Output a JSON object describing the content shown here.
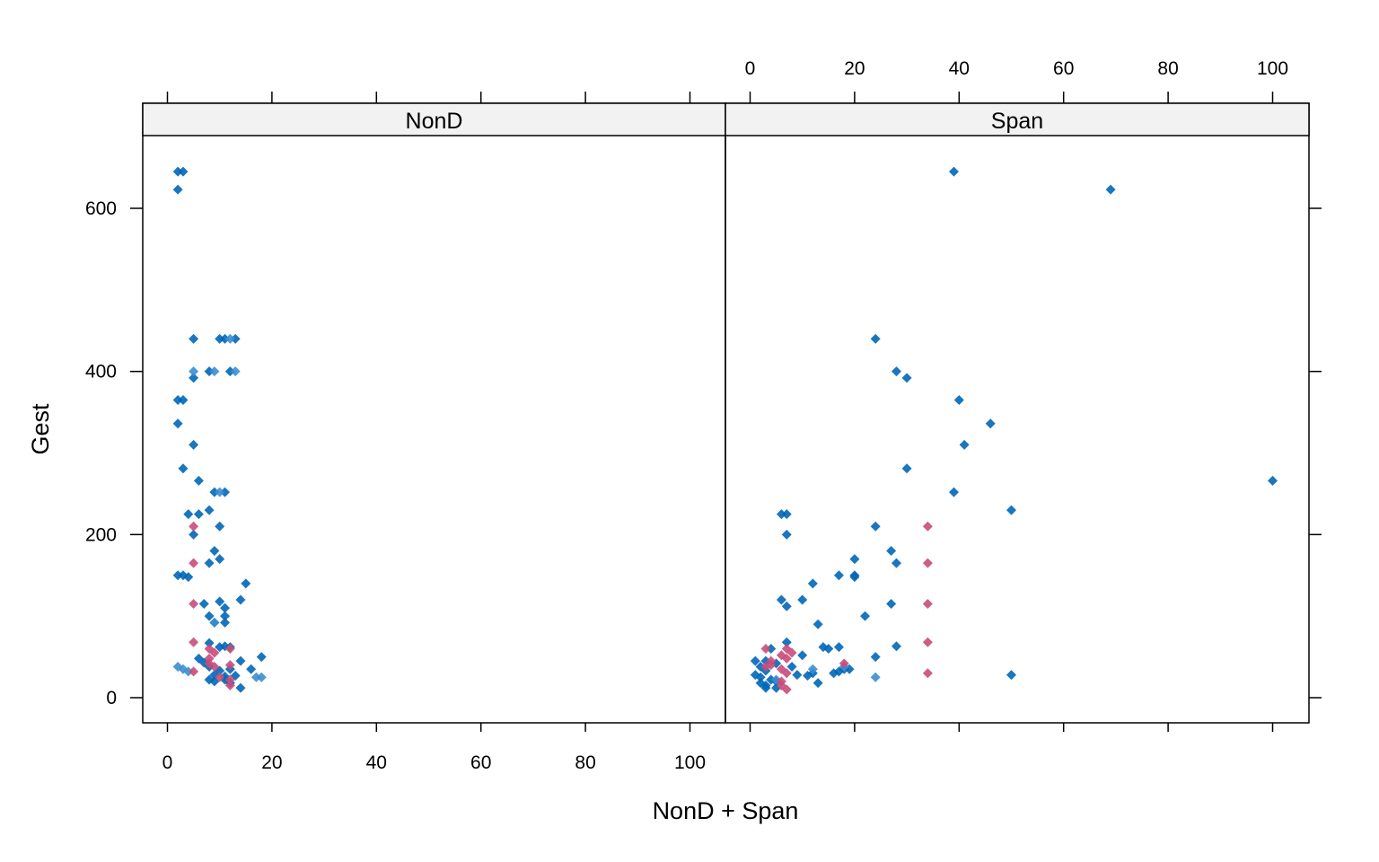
{
  "chart_data": {
    "type": "scatter",
    "xlabel": "NonD + Span",
    "ylabel": "Gest",
    "xlim": [
      -5,
      107
    ],
    "ylim": [
      -30,
      690
    ],
    "x_ticks": [
      0,
      20,
      40,
      60,
      80,
      100
    ],
    "y_ticks": [
      0,
      200,
      400,
      600
    ],
    "grid": false,
    "colors": {
      "blue": "#0067B8",
      "light_blue": "#3C8ED0",
      "pink": "#C64D7A",
      "strip_bg": "#F2F2F2",
      "frame": "#000000"
    },
    "panels": [
      {
        "name": "NonD",
        "series": [
          {
            "color": "#0067B8",
            "points": [
              [
                2,
                645
              ],
              [
                3,
                645
              ],
              [
                2,
                623
              ],
              [
                5,
                440
              ],
              [
                10,
                440
              ],
              [
                11,
                440
              ],
              [
                13,
                440
              ],
              [
                5,
                392
              ],
              [
                8,
                400
              ],
              [
                12,
                400
              ],
              [
                2,
                365
              ],
              [
                3,
                365
              ],
              [
                2,
                336
              ],
              [
                5,
                310
              ],
              [
                3,
                281
              ],
              [
                6,
                266
              ],
              [
                9,
                252
              ],
              [
                11,
                252
              ],
              [
                8,
                230
              ],
              [
                4,
                225
              ],
              [
                6,
                225
              ],
              [
                10,
                210
              ],
              [
                5,
                200
              ],
              [
                9,
                180
              ],
              [
                10,
                170
              ],
              [
                8,
                165
              ],
              [
                2,
                150
              ],
              [
                3,
                150
              ],
              [
                4,
                148
              ],
              [
                15,
                140
              ],
              [
                14,
                120
              ],
              [
                7,
                115
              ],
              [
                10,
                118
              ],
              [
                11,
                110
              ],
              [
                8,
                100
              ],
              [
                11,
                100
              ],
              [
                9,
                92
              ],
              [
                11,
                92
              ],
              [
                8,
                67
              ],
              [
                10,
                62
              ],
              [
                11,
                63
              ],
              [
                12,
                62
              ],
              [
                6,
                48
              ],
              [
                7,
                43
              ],
              [
                14,
                45
              ],
              [
                18,
                50
              ],
              [
                16,
                35
              ],
              [
                8,
                38
              ],
              [
                10,
                33
              ],
              [
                12,
                35
              ],
              [
                9,
                28
              ],
              [
                11,
                26
              ],
              [
                13,
                27
              ],
              [
                8,
                22
              ],
              [
                9,
                20
              ],
              [
                11,
                22
              ],
              [
                12,
                18
              ],
              [
                14,
                12
              ]
            ]
          },
          {
            "color": "#3C8ED0",
            "points": [
              [
                5,
                400
              ],
              [
                9,
                400
              ],
              [
                13,
                400
              ],
              [
                12,
                440
              ],
              [
                10,
                252
              ],
              [
                9,
                92
              ],
              [
                2,
                38
              ],
              [
                3,
                35
              ],
              [
                4,
                32
              ],
              [
                17,
                25
              ],
              [
                18,
                25
              ]
            ]
          },
          {
            "color": "#C64D7A",
            "points": [
              [
                5,
                210
              ],
              [
                5,
                165
              ],
              [
                5,
                115
              ],
              [
                5,
                68
              ],
              [
                5,
                32
              ],
              [
                8,
                60
              ],
              [
                9,
                55
              ],
              [
                12,
                60
              ],
              [
                8,
                48
              ],
              [
                8,
                42
              ],
              [
                9,
                38
              ],
              [
                12,
                40
              ],
              [
                10,
                25
              ],
              [
                12,
                15
              ],
              [
                12,
                22
              ]
            ]
          }
        ]
      },
      {
        "name": "Span",
        "series": [
          {
            "color": "#0067B8",
            "points": [
              [
                39,
                645
              ],
              [
                69,
                623
              ],
              [
                24,
                440
              ],
              [
                28,
                400
              ],
              [
                30,
                392
              ],
              [
                40,
                365
              ],
              [
                46,
                336
              ],
              [
                41,
                310
              ],
              [
                30,
                281
              ],
              [
                100,
                266
              ],
              [
                39,
                252
              ],
              [
                50,
                230
              ],
              [
                6,
                225
              ],
              [
                7,
                225
              ],
              [
                24,
                210
              ],
              [
                7,
                200
              ],
              [
                27,
                180
              ],
              [
                20,
                170
              ],
              [
                28,
                165
              ],
              [
                17,
                150
              ],
              [
                20,
                150
              ],
              [
                20,
                148
              ],
              [
                12,
                140
              ],
              [
                6,
                120
              ],
              [
                10,
                120
              ],
              [
                27,
                115
              ],
              [
                7,
                112
              ],
              [
                22,
                100
              ],
              [
                13,
                90
              ],
              [
                7,
                68
              ],
              [
                28,
                63
              ],
              [
                14,
                62
              ],
              [
                15,
                60
              ],
              [
                17,
                62
              ],
              [
                4,
                60
              ],
              [
                10,
                52
              ],
              [
                24,
                50
              ],
              [
                1,
                45
              ],
              [
                3,
                45
              ],
              [
                5,
                42
              ],
              [
                2,
                38
              ],
              [
                8,
                38
              ],
              [
                18,
                35
              ],
              [
                19,
                35
              ],
              [
                3,
                33
              ],
              [
                9,
                28
              ],
              [
                11,
                27
              ],
              [
                12,
                30
              ],
              [
                16,
                30
              ],
              [
                17,
                32
              ],
              [
                1,
                28
              ],
              [
                2,
                25
              ],
              [
                50,
                28
              ],
              [
                4,
                22
              ],
              [
                5,
                20
              ],
              [
                2,
                18
              ],
              [
                3,
                15
              ],
              [
                13,
                18
              ],
              [
                5,
                12
              ],
              [
                3,
                12
              ]
            ]
          },
          {
            "color": "#3C8ED0",
            "points": [
              [
                24,
                25
              ],
              [
                12,
                35
              ],
              [
                18,
                38
              ],
              [
                5,
                22
              ]
            ]
          },
          {
            "color": "#C64D7A",
            "points": [
              [
                34,
                210
              ],
              [
                34,
                165
              ],
              [
                34,
                115
              ],
              [
                34,
                68
              ],
              [
                34,
                30
              ],
              [
                3,
                60
              ],
              [
                7,
                60
              ],
              [
                4,
                45
              ],
              [
                3,
                38
              ],
              [
                4,
                40
              ],
              [
                6,
                52
              ],
              [
                7,
                48
              ],
              [
                8,
                55
              ],
              [
                6,
                35
              ],
              [
                7,
                30
              ],
              [
                6,
                20
              ],
              [
                6,
                15
              ],
              [
                7,
                10
              ],
              [
                18,
                42
              ]
            ]
          }
        ]
      }
    ]
  }
}
